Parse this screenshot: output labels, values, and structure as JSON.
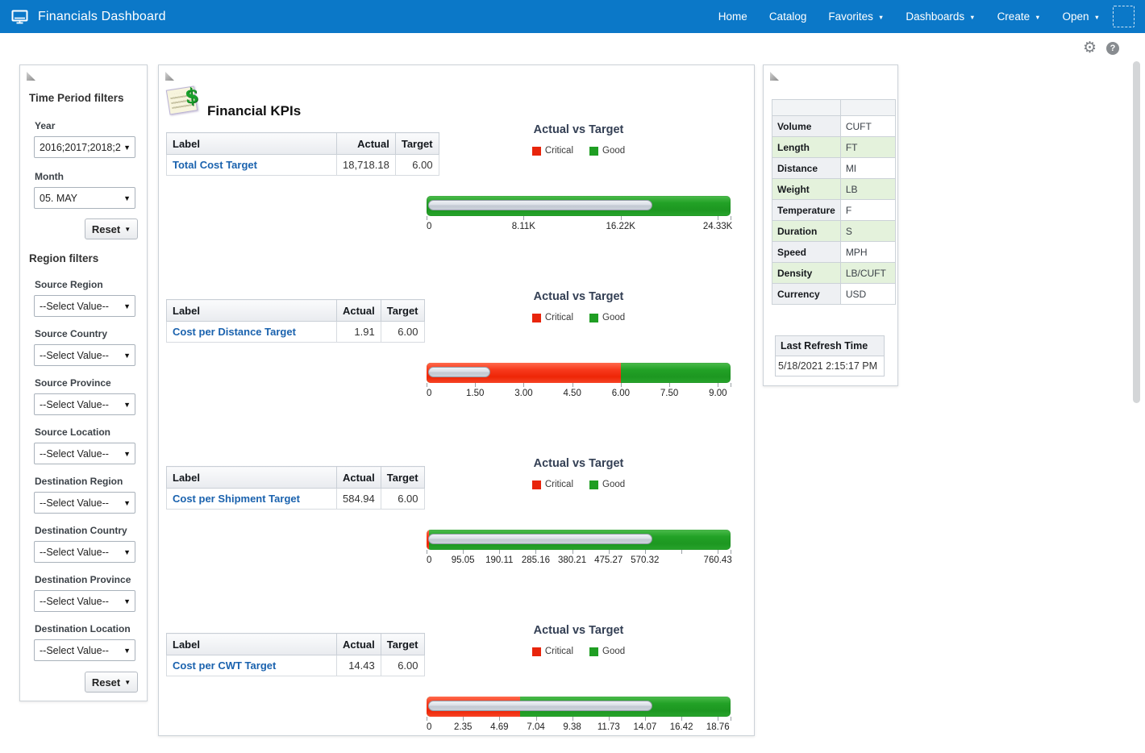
{
  "navbar": {
    "title": "Financials Dashboard",
    "menu": [
      {
        "label": "Home",
        "caret": false
      },
      {
        "label": "Catalog",
        "caret": false
      },
      {
        "label": "Favorites",
        "caret": true
      },
      {
        "label": "Dashboards",
        "caret": true
      },
      {
        "label": "Create",
        "caret": true
      },
      {
        "label": "Open",
        "caret": true
      }
    ]
  },
  "filters_panel": {
    "time_heading": "Time Period filters",
    "time_filters": [
      {
        "label": "Year",
        "value": "2016;2017;2018;2"
      },
      {
        "label": "Month",
        "value": "05. MAY"
      }
    ],
    "reset_label": "Reset",
    "region_heading": "Region filters",
    "region_filters": [
      {
        "label": "Source Region",
        "value": "--Select Value--"
      },
      {
        "label": "Source Country",
        "value": "--Select Value--"
      },
      {
        "label": "Source Province",
        "value": "--Select Value--"
      },
      {
        "label": "Source Location",
        "value": "--Select Value--"
      },
      {
        "label": "Destination Region",
        "value": "--Select Value--"
      },
      {
        "label": "Destination Country",
        "value": "--Select Value--"
      },
      {
        "label": "Destination Province",
        "value": "--Select Value--"
      },
      {
        "label": "Destination Location",
        "value": "--Select Value--"
      }
    ]
  },
  "main": {
    "title": "Financial KPIs",
    "table_headers": [
      "Label",
      "Actual",
      "Target"
    ],
    "legend": [
      {
        "label": "Critical",
        "color": "#e8250c"
      },
      {
        "label": "Good",
        "color": "#1f9e23"
      }
    ]
  },
  "chart_data": [
    {
      "type": "bullet",
      "title": "Actual vs Target",
      "kpi": "Total Cost Target",
      "actual": 18718.18,
      "actual_display": "18,718.18",
      "target": 6.0,
      "target_display": "6.00",
      "xlim": [
        0,
        25400
      ],
      "ticks": [
        {
          "value": 0,
          "label": "0"
        },
        {
          "value": 8110,
          "label": "8.11K"
        },
        {
          "value": 16220,
          "label": "16.22K"
        },
        {
          "value": 24330,
          "label": "24.33K"
        }
      ],
      "zones": [
        {
          "level": "Critical",
          "from": 0,
          "to": 6
        },
        {
          "level": "Good",
          "from": 6,
          "to": 25400
        }
      ],
      "legend_position": "top"
    },
    {
      "type": "bullet",
      "title": "Actual vs Target",
      "kpi": "Cost per Distance Target",
      "actual": 1.91,
      "actual_display": "1.91",
      "target": 6.0,
      "target_display": "6.00",
      "xlim": [
        0,
        9.39
      ],
      "ticks": [
        {
          "value": 0,
          "label": "0"
        },
        {
          "value": 1.5,
          "label": "1.50"
        },
        {
          "value": 3.0,
          "label": "3.00"
        },
        {
          "value": 4.5,
          "label": "4.50"
        },
        {
          "value": 6.0,
          "label": "6.00"
        },
        {
          "value": 7.5,
          "label": "7.50"
        },
        {
          "value": 9.0,
          "label": "9.00"
        }
      ],
      "zones": [
        {
          "level": "Critical",
          "from": 0,
          "to": 6
        },
        {
          "level": "Good",
          "from": 6,
          "to": 9.39
        }
      ],
      "legend_position": "top"
    },
    {
      "type": "bullet",
      "title": "Actual vs Target",
      "kpi": "Cost per Shipment Target",
      "actual": 584.94,
      "actual_display": "584.94",
      "target": 6.0,
      "target_display": "6.00",
      "xlim": [
        0,
        793.8
      ],
      "ticks": [
        {
          "value": 0,
          "label": "0"
        },
        {
          "value": 95.05,
          "label": "95.05"
        },
        {
          "value": 190.11,
          "label": "190.11"
        },
        {
          "value": 285.16,
          "label": "285.16"
        },
        {
          "value": 380.21,
          "label": "380.21"
        },
        {
          "value": 475.27,
          "label": "475.27"
        },
        {
          "value": 570.32,
          "label": "570.32"
        },
        {
          "value": 665.38,
          "label": ""
        },
        {
          "value": 760.43,
          "label": "760.43"
        }
      ],
      "zones": [
        {
          "level": "Critical",
          "from": 0,
          "to": 6
        },
        {
          "level": "Good",
          "from": 6,
          "to": 793.8
        }
      ],
      "legend_position": "top"
    },
    {
      "type": "bullet",
      "title": "Actual vs Target",
      "kpi": "Cost per CWT Target",
      "actual": 14.43,
      "actual_display": "14.43",
      "target": 6.0,
      "target_display": "6.00",
      "xlim": [
        0,
        19.58
      ],
      "ticks": [
        {
          "value": 0,
          "label": "0"
        },
        {
          "value": 2.35,
          "label": "2.35"
        },
        {
          "value": 4.69,
          "label": "4.69"
        },
        {
          "value": 7.04,
          "label": "7.04"
        },
        {
          "value": 9.38,
          "label": "9.38"
        },
        {
          "value": 11.73,
          "label": "11.73"
        },
        {
          "value": 14.07,
          "label": "14.07"
        },
        {
          "value": 16.42,
          "label": "16.42"
        },
        {
          "value": 18.76,
          "label": "18.76"
        }
      ],
      "zones": [
        {
          "level": "Critical",
          "from": 0,
          "to": 6
        },
        {
          "level": "Good",
          "from": 6,
          "to": 19.58
        }
      ],
      "legend_position": "top"
    }
  ],
  "units_panel": {
    "rows": [
      [
        "Volume",
        "CUFT"
      ],
      [
        "Length",
        "FT"
      ],
      [
        "Distance",
        "MI"
      ],
      [
        "Weight",
        "LB"
      ],
      [
        "Temperature",
        "F"
      ],
      [
        "Duration",
        "S"
      ],
      [
        "Speed",
        "MPH"
      ],
      [
        "Density",
        "LB/CUFT"
      ],
      [
        "Currency",
        "USD"
      ]
    ],
    "refresh_heading": "Last Refresh Time",
    "refresh_value": "5/18/2021 2:15:17 PM"
  },
  "colors": {
    "navbar": "#0b78c8",
    "critical": "#e8250c",
    "good": "#1f9e23",
    "kpi_link": "#1a62ae",
    "units_row_green": "#e4f2dc"
  }
}
